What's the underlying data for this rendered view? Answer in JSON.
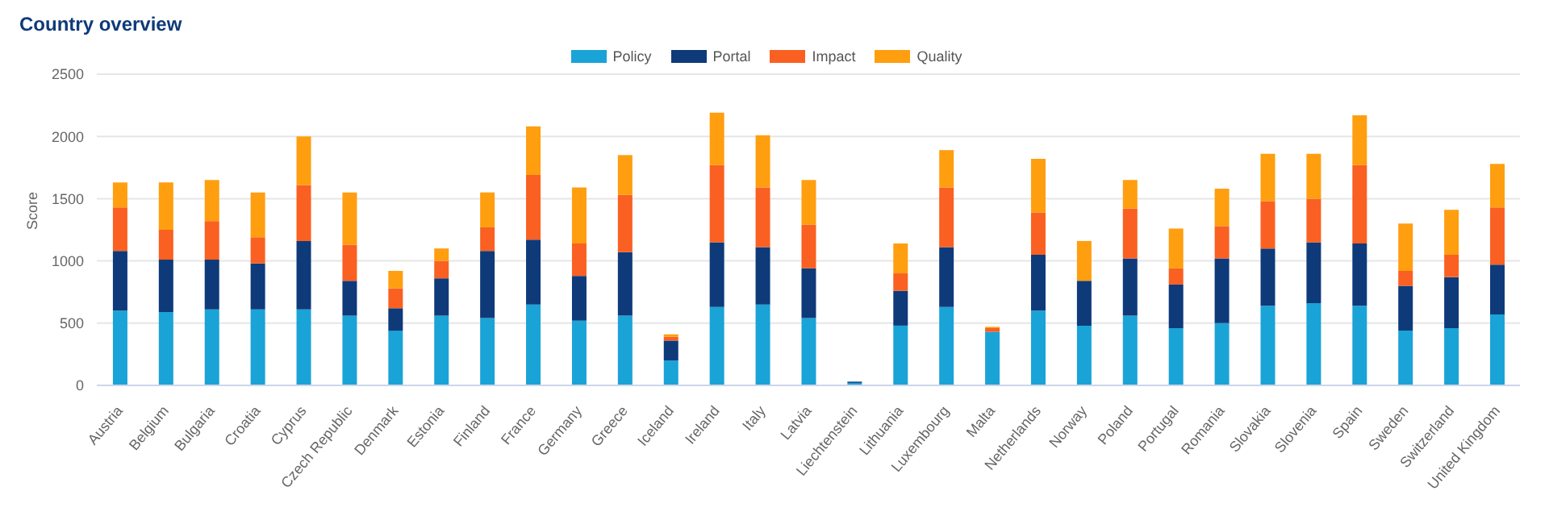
{
  "chart_data": {
    "type": "bar",
    "title": "Country overview",
    "ylabel": "Score",
    "stacked": true,
    "grid": "y",
    "legend": "top",
    "categories": [
      "Austria",
      "Belgium",
      "Bulgaria",
      "Croatia",
      "Cyprus",
      "Czech Republic",
      "Denmark",
      "Estonia",
      "Finland",
      "France",
      "Germany",
      "Greece",
      "Iceland",
      "Ireland",
      "Italy",
      "Latvia",
      "Liechtenstein",
      "Lithuania",
      "Luxembourg",
      "Malta",
      "Netherlands",
      "Norway",
      "Poland",
      "Portugal",
      "Romania",
      "Slovakia",
      "Slovenia",
      "Spain",
      "Sweden",
      "Switzerland",
      "United Kingdom"
    ],
    "series": [
      {
        "name": "Policy",
        "color": "#1aa3d6",
        "values": [
          600,
          590,
          610,
          610,
          610,
          560,
          440,
          560,
          540,
          650,
          520,
          560,
          200,
          630,
          650,
          540,
          20,
          480,
          630,
          430,
          600,
          480,
          560,
          460,
          500,
          640,
          660,
          640,
          440,
          460,
          570
        ]
      },
      {
        "name": "Portal",
        "color": "#0e3a7a",
        "values": [
          480,
          420,
          400,
          370,
          550,
          280,
          180,
          300,
          540,
          520,
          360,
          510,
          160,
          520,
          460,
          400,
          10,
          280,
          480,
          0,
          450,
          360,
          460,
          350,
          520,
          460,
          490,
          500,
          360,
          410,
          400
        ]
      },
      {
        "name": "Impact",
        "color": "#fa6021",
        "values": [
          350,
          240,
          310,
          210,
          450,
          290,
          160,
          140,
          190,
          520,
          260,
          460,
          30,
          620,
          480,
          350,
          0,
          140,
          480,
          30,
          340,
          0,
          400,
          130,
          260,
          380,
          350,
          630,
          120,
          180,
          460
        ]
      },
      {
        "name": "Quality",
        "color": "#ff9e0f",
        "values": [
          200,
          380,
          330,
          360,
          390,
          420,
          140,
          100,
          280,
          390,
          450,
          320,
          20,
          420,
          420,
          360,
          0,
          240,
          300,
          10,
          430,
          320,
          230,
          320,
          300,
          380,
          360,
          400,
          380,
          360,
          350
        ]
      }
    ],
    "ylim": [
      0,
      2500
    ],
    "yticks": [
      0,
      500,
      1000,
      1500,
      2000,
      2500
    ]
  }
}
